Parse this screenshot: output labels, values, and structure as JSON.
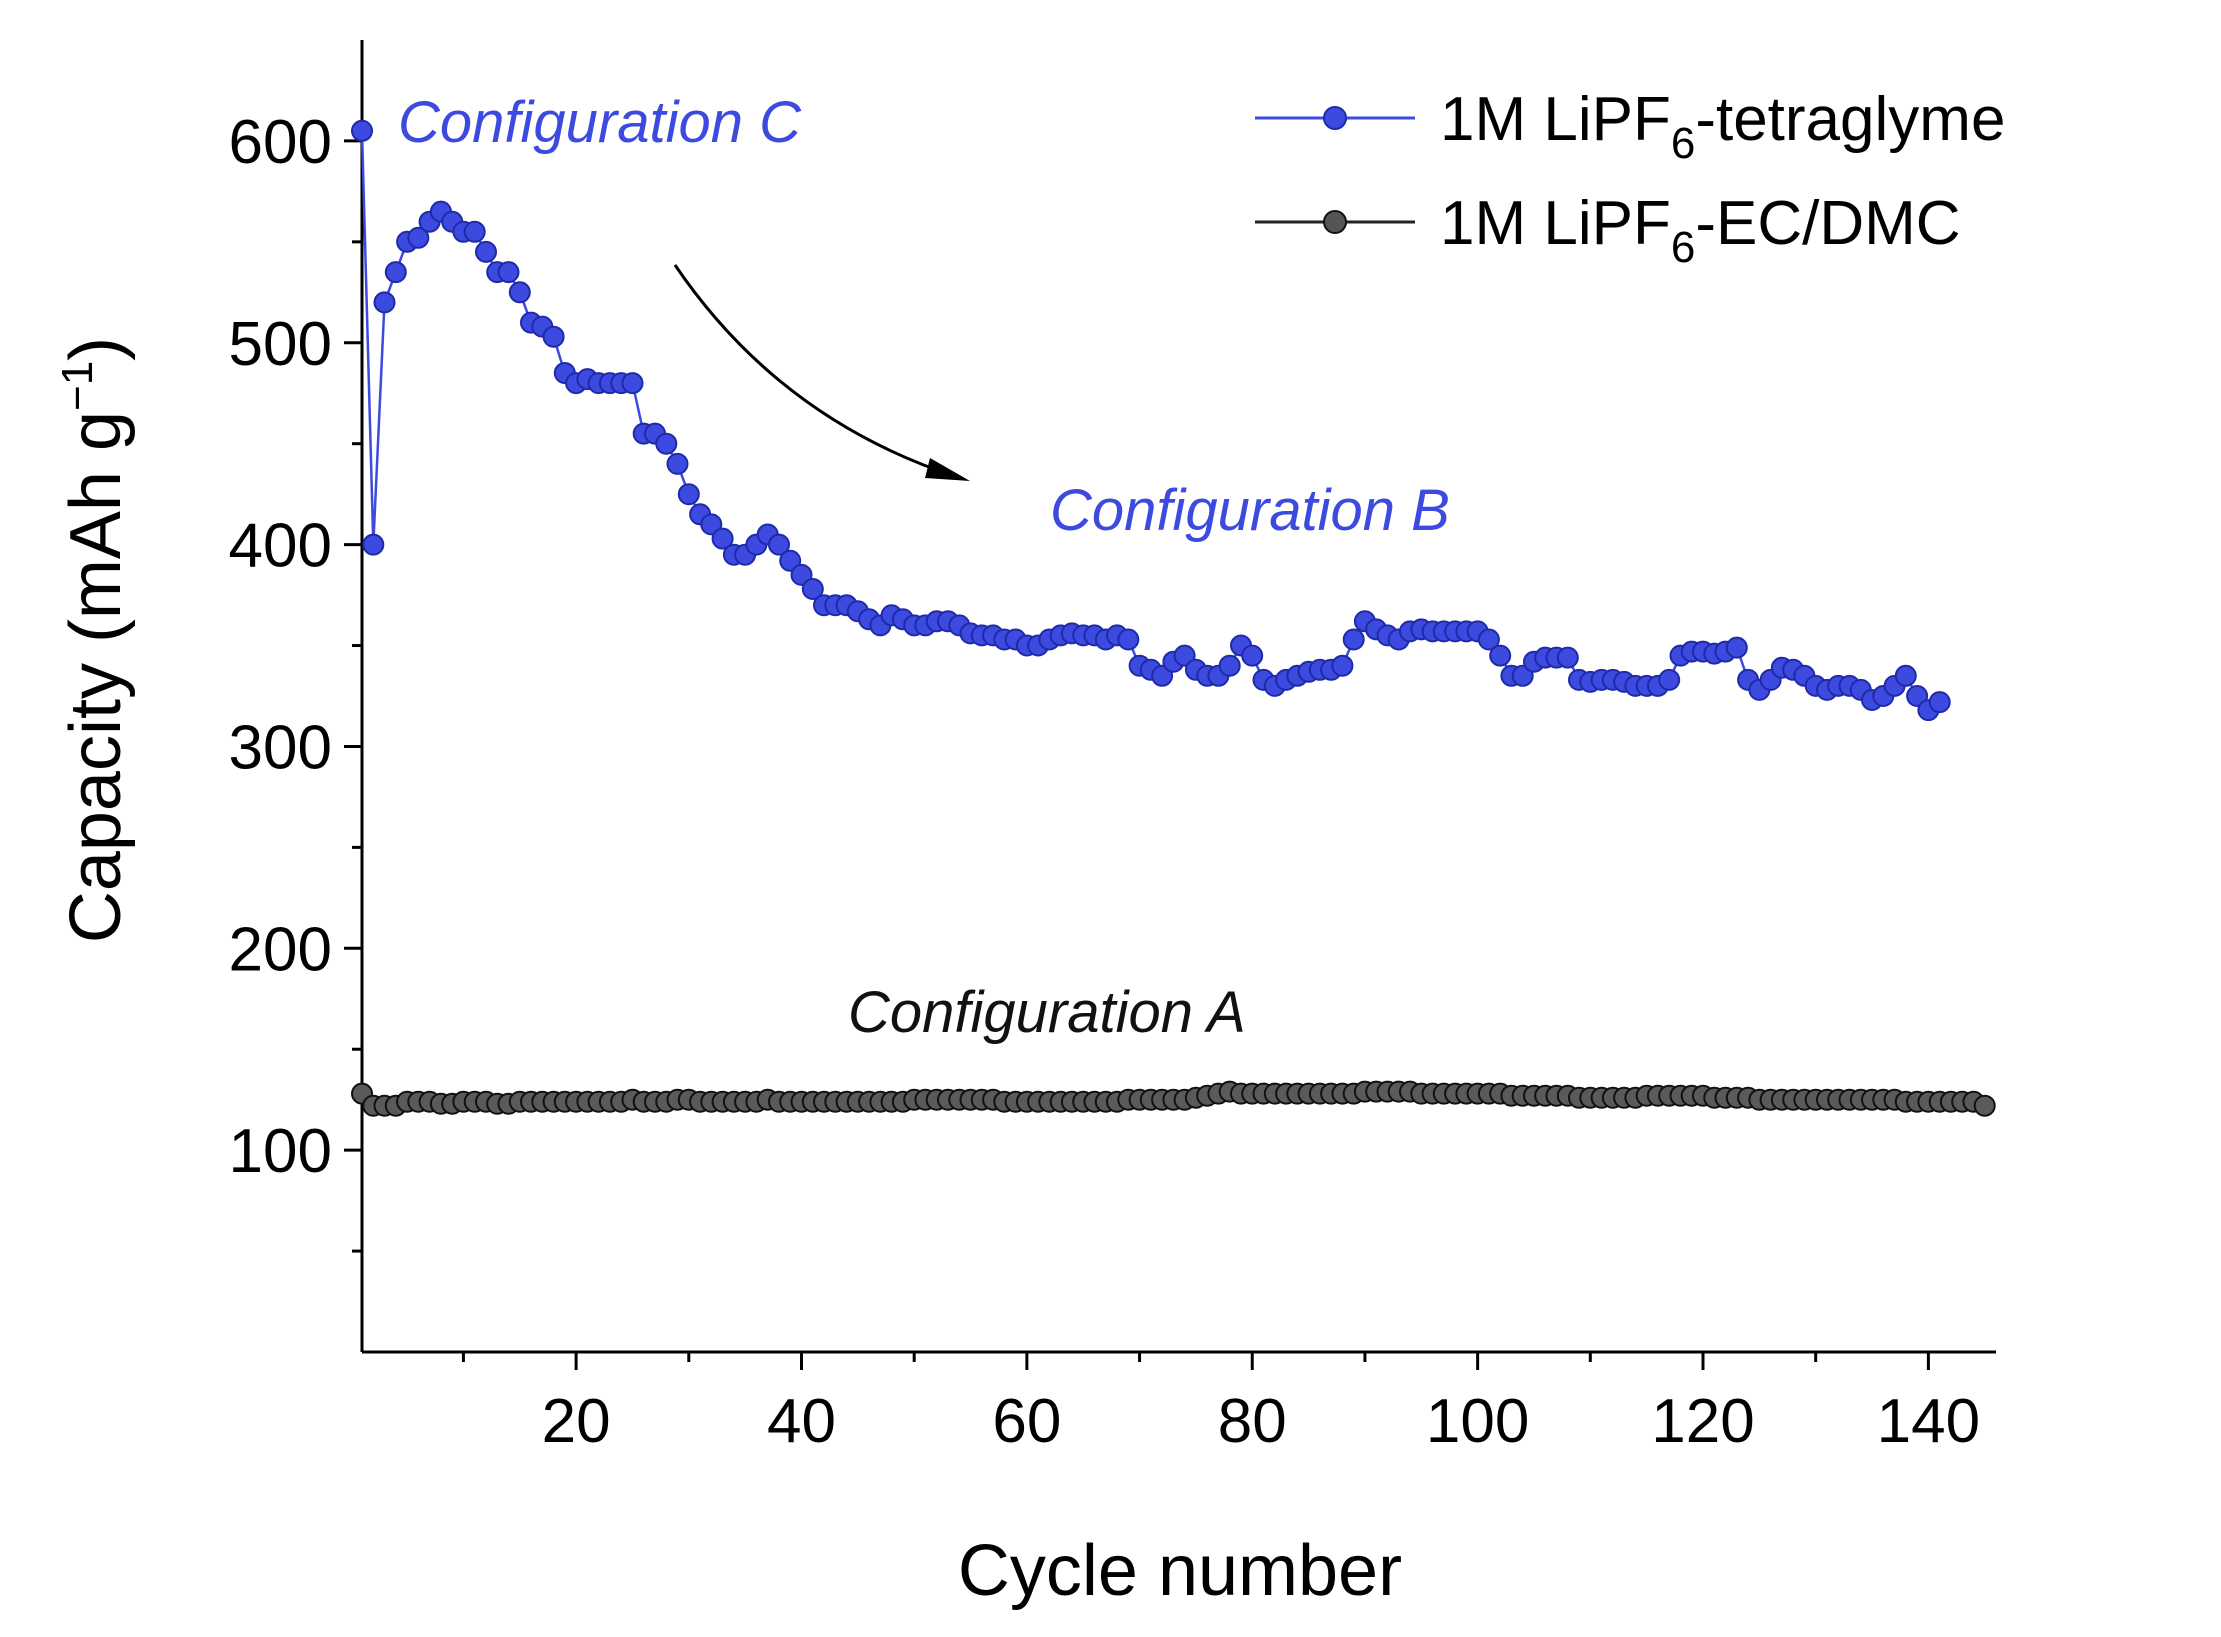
{
  "chart_data": {
    "type": "line",
    "title": "",
    "xlabel": "Cycle number",
    "ylabel": {
      "prefix": "Capacity (mAh g",
      "sup": "−1",
      "suffix": ")"
    },
    "xlim": [
      1,
      146
    ],
    "ylim": [
      0,
      650
    ],
    "x_ticks": [
      20,
      40,
      60,
      80,
      100,
      120,
      140
    ],
    "y_ticks": [
      100,
      200,
      300,
      400,
      500,
      600
    ],
    "legend_position": "top-right",
    "series": [
      {
        "name": "1M LiPF6-tetraglyme",
        "legend": {
          "pre": "1M LiPF",
          "sub": "6",
          "post": "-tetraglyme"
        },
        "color": "#3d4ae0",
        "x": [
          1,
          2,
          3,
          4,
          5,
          6,
          7,
          8,
          9,
          10,
          11,
          12,
          13,
          14,
          15,
          16,
          17,
          18,
          19,
          20,
          21,
          22,
          23,
          24,
          25,
          26,
          27,
          28,
          29,
          30,
          31,
          32,
          33,
          34,
          35,
          36,
          37,
          38,
          39,
          40,
          41,
          42,
          43,
          44,
          45,
          46,
          47,
          48,
          49,
          50,
          51,
          52,
          53,
          54,
          55,
          56,
          57,
          58,
          59,
          60,
          61,
          62,
          63,
          64,
          65,
          66,
          67,
          68,
          69,
          70,
          71,
          72,
          73,
          74,
          75,
          76,
          77,
          78,
          79,
          80,
          81,
          82,
          83,
          84,
          85,
          86,
          87,
          88,
          89,
          90,
          91,
          92,
          93,
          94,
          95,
          96,
          97,
          98,
          99,
          100,
          101,
          102,
          103,
          104,
          105,
          106,
          107,
          108,
          109,
          110,
          111,
          112,
          113,
          114,
          115,
          116,
          117,
          118,
          119,
          120,
          121,
          122,
          123,
          124,
          125,
          126,
          127,
          128,
          129,
          130,
          131,
          132,
          133,
          134,
          135,
          136,
          137,
          138,
          139,
          140,
          141
        ],
        "values": [
          605,
          400,
          520,
          535,
          550,
          552,
          560,
          565,
          560,
          555,
          555,
          545,
          535,
          535,
          525,
          510,
          508,
          503,
          485,
          480,
          482,
          480,
          480,
          480,
          480,
          455,
          455,
          450,
          440,
          425,
          415,
          410,
          403,
          395,
          395,
          400,
          405,
          400,
          392,
          385,
          378,
          370,
          370,
          370,
          367,
          363,
          360,
          365,
          363,
          360,
          360,
          362,
          362,
          360,
          356,
          355,
          355,
          353,
          353,
          350,
          350,
          353,
          355,
          356,
          355,
          355,
          353,
          355,
          353,
          340,
          338,
          335,
          342,
          345,
          338,
          335,
          335,
          340,
          350,
          345,
          333,
          330,
          333,
          335,
          337,
          338,
          338,
          340,
          353,
          362,
          358,
          355,
          353,
          357,
          358,
          357,
          357,
          357,
          357,
          357,
          353,
          345,
          335,
          335,
          342,
          344,
          344,
          344,
          333,
          332,
          333,
          333,
          332,
          330,
          330,
          330,
          333,
          345,
          347,
          347,
          346,
          347,
          349,
          333,
          328,
          333,
          339,
          338,
          335,
          330,
          328,
          330,
          330,
          328,
          323,
          325,
          330,
          335,
          325,
          318,
          322
        ]
      },
      {
        "name": "1M LiPF6-EC/DMC",
        "legend": {
          "pre": "1M LiPF",
          "sub": "6",
          "post": "-EC/DMC"
        },
        "color": "#222222",
        "x": [
          1,
          2,
          3,
          4,
          5,
          6,
          7,
          8,
          9,
          10,
          11,
          12,
          13,
          14,
          15,
          16,
          17,
          18,
          19,
          20,
          21,
          22,
          23,
          24,
          25,
          26,
          27,
          28,
          29,
          30,
          31,
          32,
          33,
          34,
          35,
          36,
          37,
          38,
          39,
          40,
          41,
          42,
          43,
          44,
          45,
          46,
          47,
          48,
          49,
          50,
          51,
          52,
          53,
          54,
          55,
          56,
          57,
          58,
          59,
          60,
          61,
          62,
          63,
          64,
          65,
          66,
          67,
          68,
          69,
          70,
          71,
          72,
          73,
          74,
          75,
          76,
          77,
          78,
          79,
          80,
          81,
          82,
          83,
          84,
          85,
          86,
          87,
          88,
          89,
          90,
          91,
          92,
          93,
          94,
          95,
          96,
          97,
          98,
          99,
          100,
          101,
          102,
          103,
          104,
          105,
          106,
          107,
          108,
          109,
          110,
          111,
          112,
          113,
          114,
          115,
          116,
          117,
          118,
          119,
          120,
          121,
          122,
          123,
          124,
          125,
          126,
          127,
          128,
          129,
          130,
          131,
          132,
          133,
          134,
          135,
          136,
          137,
          138,
          139,
          140,
          141,
          142,
          143,
          144,
          145
        ],
        "values": [
          128,
          122,
          122,
          122,
          124,
          124,
          124,
          123,
          123,
          124,
          124,
          124,
          123,
          123,
          124,
          124,
          124,
          124,
          124,
          124,
          124,
          124,
          124,
          124,
          125,
          124,
          124,
          124,
          125,
          125,
          124,
          124,
          124,
          124,
          124,
          124,
          125,
          124,
          124,
          124,
          124,
          124,
          124,
          124,
          124,
          124,
          124,
          124,
          124,
          125,
          125,
          125,
          125,
          125,
          125,
          125,
          125,
          124,
          124,
          124,
          124,
          124,
          124,
          124,
          124,
          124,
          124,
          124,
          125,
          125,
          125,
          125,
          125,
          125,
          126,
          127,
          128,
          129,
          128,
          128,
          128,
          128,
          128,
          128,
          128,
          128,
          128,
          128,
          128,
          129,
          129,
          129,
          129,
          129,
          128,
          128,
          128,
          128,
          128,
          128,
          128,
          128,
          127,
          127,
          127,
          127,
          127,
          127,
          126,
          126,
          126,
          126,
          126,
          126,
          127,
          127,
          127,
          127,
          127,
          127,
          126,
          126,
          126,
          126,
          125,
          125,
          125,
          125,
          125,
          125,
          125,
          125,
          125,
          125,
          125,
          125,
          125,
          124,
          124,
          124,
          124,
          124,
          124,
          124,
          122
        ]
      }
    ],
    "annotations": [
      {
        "text": "Configuration C",
        "color": "#3d4ae0"
      },
      {
        "text": "Configuration B",
        "color": "#3d4ae0"
      },
      {
        "text": "Configuration A",
        "color": "#111111"
      }
    ]
  }
}
